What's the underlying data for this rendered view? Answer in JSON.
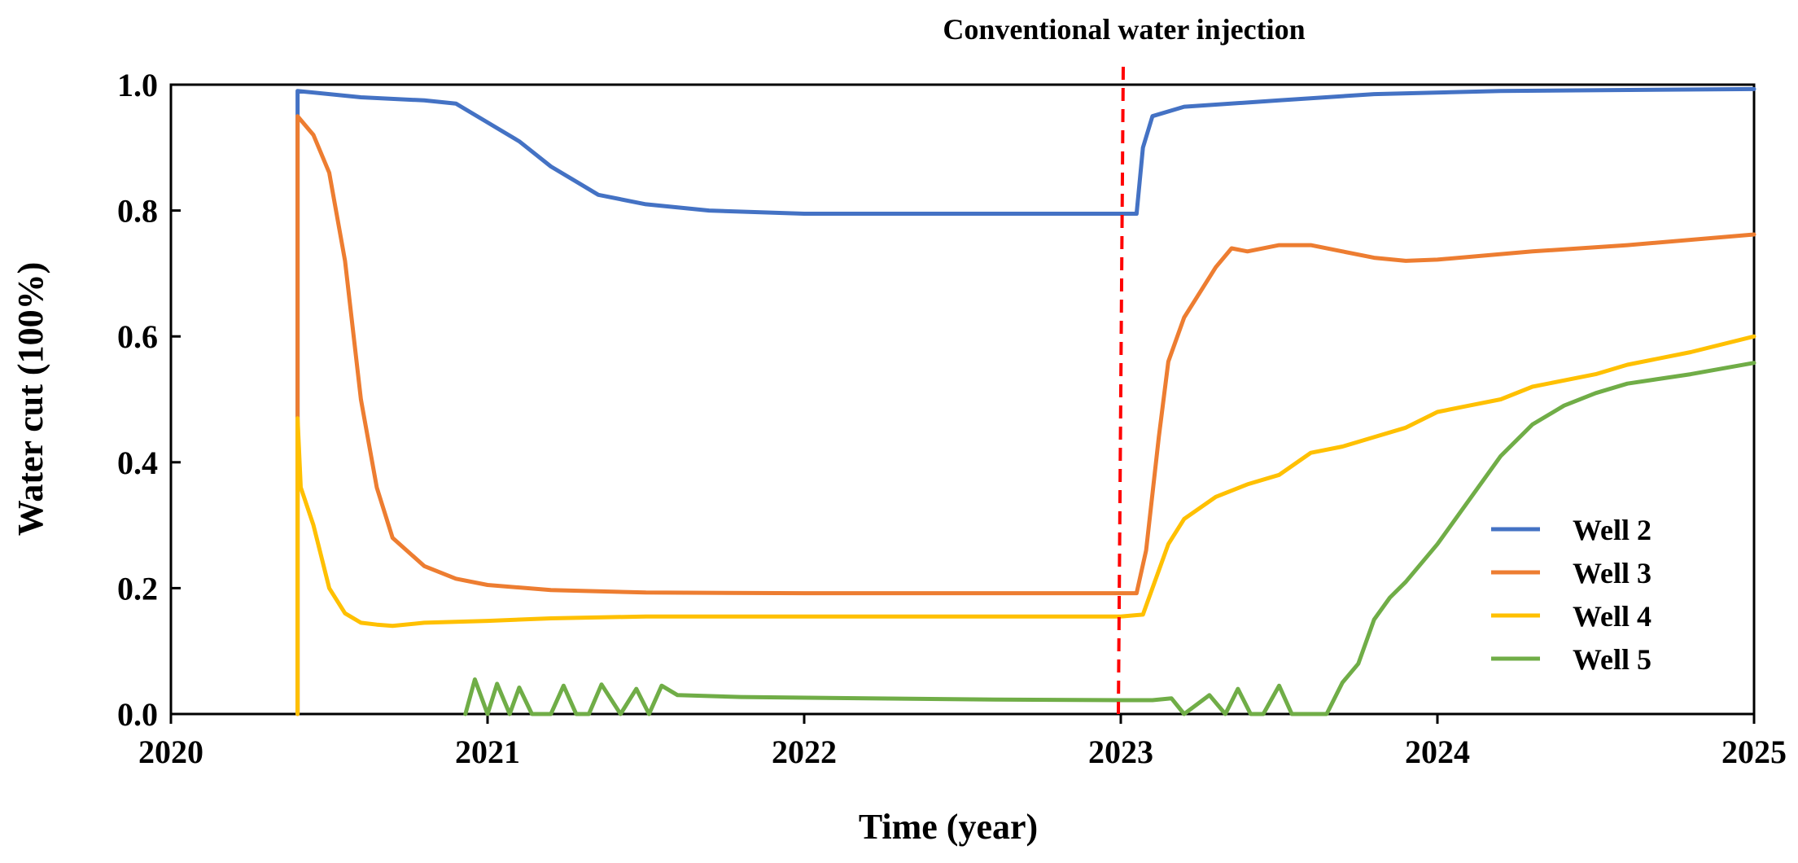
{
  "chart_data": {
    "type": "line",
    "title": "",
    "xlabel": "Time (year)",
    "ylabel": "Water cut (100%)",
    "xlim": [
      2020,
      2025
    ],
    "ylim": [
      0.0,
      1.0
    ],
    "x_ticks": [
      "2020",
      "2021",
      "2022",
      "2023",
      "2024",
      "2025"
    ],
    "y_ticks": [
      "0.0",
      "0.2",
      "0.4",
      "0.6",
      "0.8",
      "1.0"
    ],
    "grid": false,
    "legend_position": "bottom-right",
    "annotations": [
      {
        "text": "Conventional water injection",
        "x": 2023.0,
        "color": "#ff0000",
        "style": "dashed vertical line"
      }
    ],
    "series": [
      {
        "name": "Well 2",
        "color": "#4472c4",
        "points": [
          [
            2020.4,
            0.0
          ],
          [
            2020.4,
            0.99
          ],
          [
            2020.6,
            0.98
          ],
          [
            2020.8,
            0.975
          ],
          [
            2020.9,
            0.97
          ],
          [
            2021.0,
            0.94
          ],
          [
            2021.1,
            0.91
          ],
          [
            2021.2,
            0.87
          ],
          [
            2021.3,
            0.84
          ],
          [
            2021.35,
            0.825
          ],
          [
            2021.5,
            0.81
          ],
          [
            2021.7,
            0.8
          ],
          [
            2022.0,
            0.795
          ],
          [
            2022.5,
            0.795
          ],
          [
            2023.0,
            0.795
          ],
          [
            2023.05,
            0.795
          ],
          [
            2023.07,
            0.9
          ],
          [
            2023.1,
            0.95
          ],
          [
            2023.2,
            0.965
          ],
          [
            2023.5,
            0.975
          ],
          [
            2023.8,
            0.985
          ],
          [
            2024.2,
            0.99
          ],
          [
            2025.0,
            0.993
          ]
        ]
      },
      {
        "name": "Well 3",
        "color": "#ed7d31",
        "points": [
          [
            2020.4,
            0.0
          ],
          [
            2020.4,
            0.95
          ],
          [
            2020.45,
            0.92
          ],
          [
            2020.5,
            0.86
          ],
          [
            2020.55,
            0.72
          ],
          [
            2020.6,
            0.5
          ],
          [
            2020.65,
            0.36
          ],
          [
            2020.7,
            0.28
          ],
          [
            2020.8,
            0.235
          ],
          [
            2020.9,
            0.215
          ],
          [
            2021.0,
            0.205
          ],
          [
            2021.2,
            0.197
          ],
          [
            2021.5,
            0.193
          ],
          [
            2022.0,
            0.192
          ],
          [
            2023.0,
            0.192
          ],
          [
            2023.05,
            0.192
          ],
          [
            2023.08,
            0.26
          ],
          [
            2023.12,
            0.44
          ],
          [
            2023.15,
            0.56
          ],
          [
            2023.2,
            0.63
          ],
          [
            2023.3,
            0.71
          ],
          [
            2023.35,
            0.74
          ],
          [
            2023.4,
            0.735
          ],
          [
            2023.5,
            0.745
          ],
          [
            2023.6,
            0.745
          ],
          [
            2023.7,
            0.735
          ],
          [
            2023.8,
            0.725
          ],
          [
            2023.9,
            0.72
          ],
          [
            2024.0,
            0.722
          ],
          [
            2024.3,
            0.735
          ],
          [
            2024.6,
            0.745
          ],
          [
            2025.0,
            0.762
          ]
        ]
      },
      {
        "name": "Well 4",
        "color": "#ffc000",
        "points": [
          [
            2020.4,
            0.0
          ],
          [
            2020.4,
            0.47
          ],
          [
            2020.41,
            0.36
          ],
          [
            2020.45,
            0.3
          ],
          [
            2020.5,
            0.2
          ],
          [
            2020.55,
            0.16
          ],
          [
            2020.6,
            0.145
          ],
          [
            2020.65,
            0.142
          ],
          [
            2020.7,
            0.14
          ],
          [
            2020.8,
            0.145
          ],
          [
            2021.0,
            0.148
          ],
          [
            2021.2,
            0.152
          ],
          [
            2021.5,
            0.155
          ],
          [
            2022.0,
            0.155
          ],
          [
            2023.0,
            0.155
          ],
          [
            2023.07,
            0.158
          ],
          [
            2023.1,
            0.2
          ],
          [
            2023.15,
            0.27
          ],
          [
            2023.2,
            0.31
          ],
          [
            2023.3,
            0.345
          ],
          [
            2023.4,
            0.365
          ],
          [
            2023.5,
            0.38
          ],
          [
            2023.6,
            0.415
          ],
          [
            2023.7,
            0.425
          ],
          [
            2023.8,
            0.44
          ],
          [
            2023.9,
            0.455
          ],
          [
            2024.0,
            0.48
          ],
          [
            2024.1,
            0.49
          ],
          [
            2024.2,
            0.5
          ],
          [
            2024.3,
            0.52
          ],
          [
            2024.5,
            0.54
          ],
          [
            2024.6,
            0.555
          ],
          [
            2024.8,
            0.575
          ],
          [
            2025.0,
            0.6
          ]
        ]
      },
      {
        "name": "Well 5",
        "color": "#70ad47",
        "points": [
          [
            2020.93,
            0.0
          ],
          [
            2020.96,
            0.055
          ],
          [
            2021.0,
            0.0
          ],
          [
            2021.03,
            0.048
          ],
          [
            2021.07,
            0.0
          ],
          [
            2021.1,
            0.042
          ],
          [
            2021.14,
            0.0
          ],
          [
            2021.2,
            0.0
          ],
          [
            2021.24,
            0.045
          ],
          [
            2021.28,
            0.0
          ],
          [
            2021.32,
            0.0
          ],
          [
            2021.36,
            0.047
          ],
          [
            2021.42,
            0.0
          ],
          [
            2021.47,
            0.04
          ],
          [
            2021.51,
            0.0
          ],
          [
            2021.55,
            0.045
          ],
          [
            2021.6,
            0.03
          ],
          [
            2021.8,
            0.027
          ],
          [
            2022.2,
            0.025
          ],
          [
            2022.6,
            0.023
          ],
          [
            2023.0,
            0.022
          ],
          [
            2023.1,
            0.022
          ],
          [
            2023.16,
            0.025
          ],
          [
            2023.2,
            0.0
          ],
          [
            2023.28,
            0.03
          ],
          [
            2023.33,
            0.0
          ],
          [
            2023.37,
            0.04
          ],
          [
            2023.41,
            0.0
          ],
          [
            2023.45,
            0.0
          ],
          [
            2023.5,
            0.045
          ],
          [
            2023.54,
            0.0
          ],
          [
            2023.65,
            0.0
          ],
          [
            2023.7,
            0.05
          ],
          [
            2023.75,
            0.08
          ],
          [
            2023.8,
            0.15
          ],
          [
            2023.85,
            0.185
          ],
          [
            2023.9,
            0.21
          ],
          [
            2024.0,
            0.27
          ],
          [
            2024.1,
            0.34
          ],
          [
            2024.2,
            0.41
          ],
          [
            2024.3,
            0.46
          ],
          [
            2024.4,
            0.49
          ],
          [
            2024.5,
            0.51
          ],
          [
            2024.6,
            0.525
          ],
          [
            2024.8,
            0.54
          ],
          [
            2025.0,
            0.558
          ]
        ]
      }
    ]
  }
}
